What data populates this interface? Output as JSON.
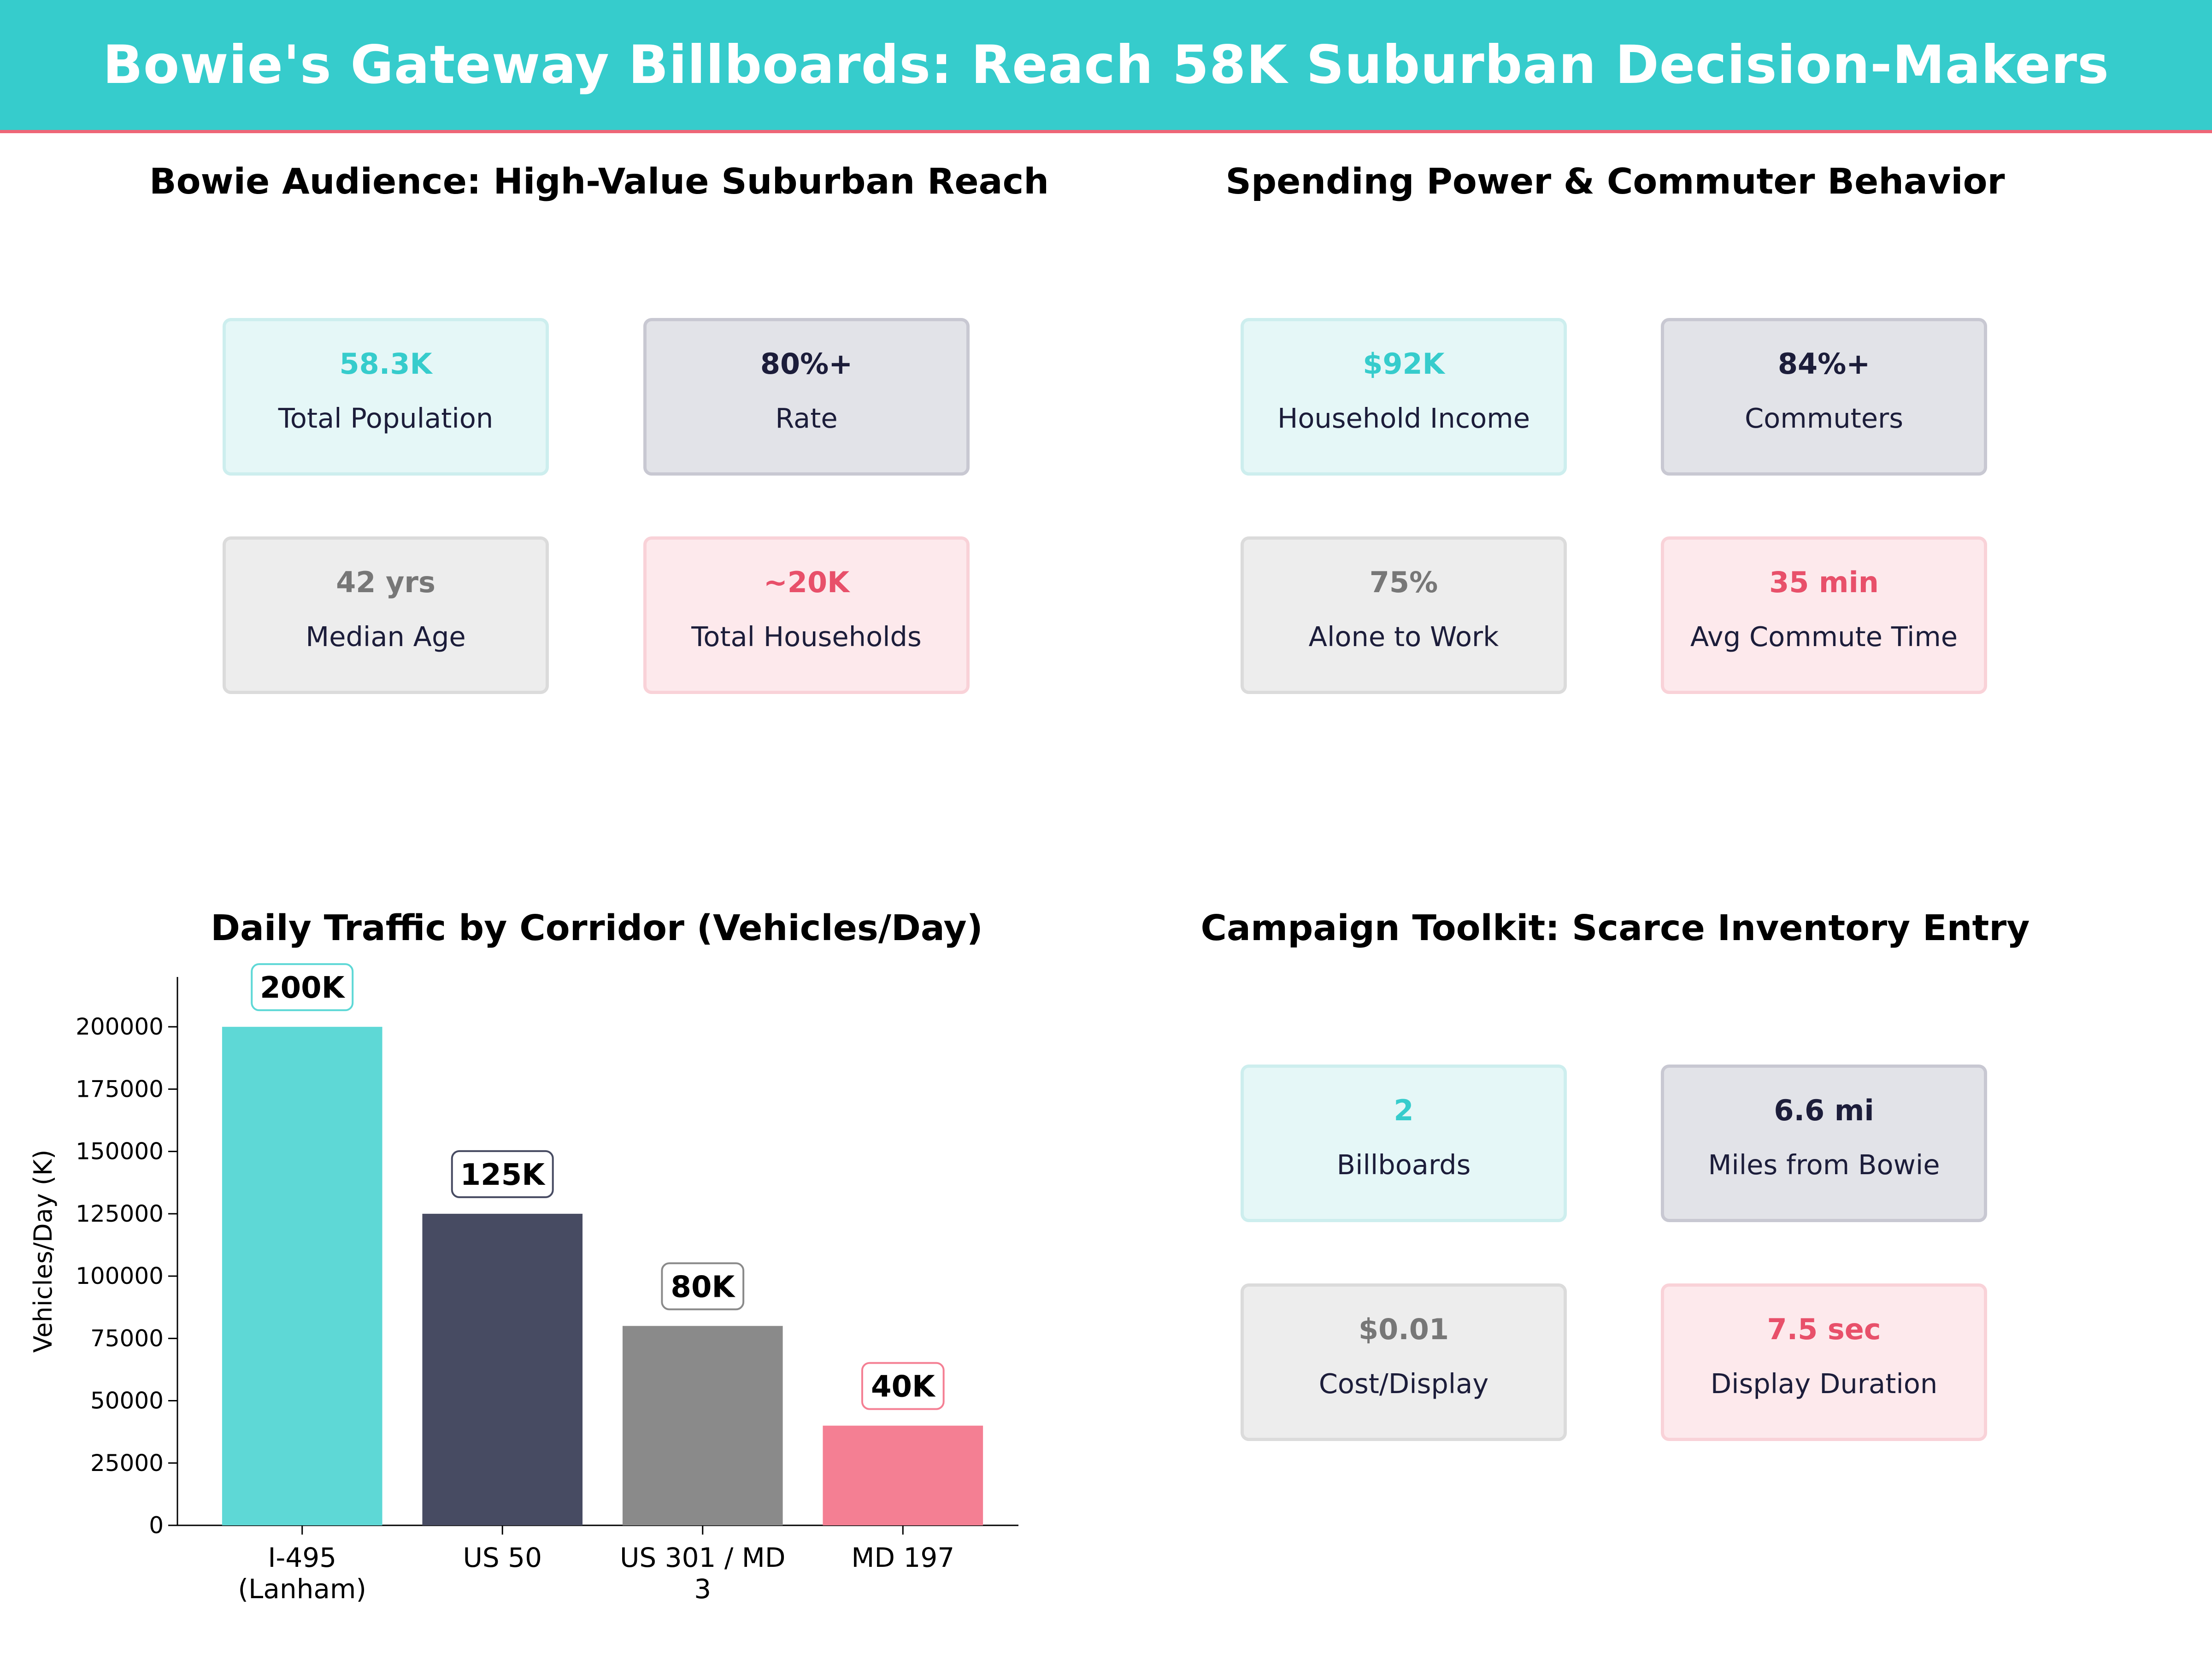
{
  "header": {
    "title": "Bowie's Gateway Billboards: Reach 58K Suburban Decision-Makers"
  },
  "colors": {
    "teal": "#36cccc",
    "navy": "#1c1d3a",
    "gray": "#777777",
    "pink": "#e8506a",
    "header_line": "#ee6677"
  },
  "panels": {
    "audience": {
      "title": "Bowie Audience: High-Value Suburban Reach",
      "cards": [
        {
          "value": "58.3K",
          "label": "Total Population"
        },
        {
          "value": "80%+",
          "label": "Rate"
        },
        {
          "value": "42 yrs",
          "label": "Median Age"
        },
        {
          "value": "~20K",
          "label": "Total Households"
        }
      ]
    },
    "spending": {
      "title": "Spending Power & Commuter Behavior",
      "cards": [
        {
          "value": "$92K",
          "label": "Household Income"
        },
        {
          "value": "84%+",
          "label": "Commuters"
        },
        {
          "value": "75%",
          "label": "Alone to Work"
        },
        {
          "value": "35 min",
          "label": "Avg Commute Time"
        }
      ]
    },
    "toolkit": {
      "title": "Campaign Toolkit: Scarce Inventory Entry",
      "cards": [
        {
          "value": "2",
          "label": "Billboards"
        },
        {
          "value": "6.6 mi",
          "label": "Miles from Bowie"
        },
        {
          "value": "$0.01",
          "label": "Cost/Display"
        },
        {
          "value": "7.5 sec",
          "label": "Display Duration"
        }
      ]
    },
    "traffic": {
      "title": "Daily Traffic by Corridor (Vehicles/Day)"
    }
  },
  "chart_data": {
    "type": "bar",
    "title": "Daily Traffic by Corridor (Vehicles/Day)",
    "xlabel": "",
    "ylabel": "Vehicles/Day (K)",
    "categories": [
      [
        "I-495",
        "(Lanham)"
      ],
      [
        "US 50"
      ],
      [
        "US 301 / MD",
        "3"
      ],
      [
        "MD 197"
      ]
    ],
    "values": [
      200000,
      125000,
      80000,
      40000
    ],
    "data_labels": [
      "200K",
      "125K",
      "80K",
      "40K"
    ],
    "bar_colors": [
      "#5ed8d6",
      "#474b62",
      "#8a8a8a",
      "#f47f93"
    ],
    "label_border_colors": [
      "#5ed8d6",
      "#474b62",
      "#8a8a8a",
      "#f47f93"
    ],
    "ylim": [
      0,
      220000
    ],
    "yticks": [
      0,
      25000,
      50000,
      75000,
      100000,
      125000,
      150000,
      175000,
      200000
    ],
    "grid": false
  }
}
